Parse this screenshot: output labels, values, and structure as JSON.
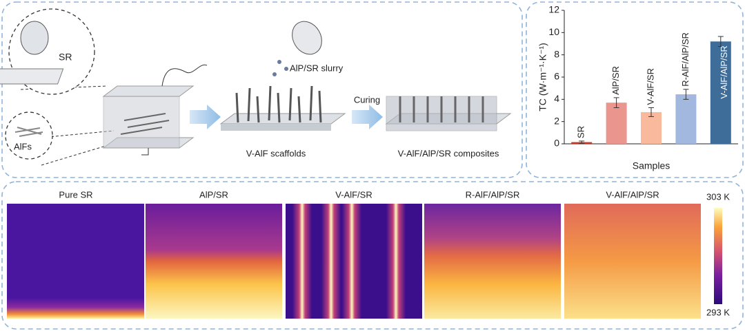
{
  "schematic": {
    "labels": [
      "SR",
      "AlFs",
      "AlP/SR slurry",
      "V-AlF scaffolds",
      "Curing",
      "V-AlF/AlP/SR composites"
    ]
  },
  "chart_data": {
    "type": "bar",
    "xlabel": "Samples",
    "ylabel": "TC (W·m⁻¹·K⁻¹)",
    "categories": [
      "SR",
      "AlP/SR",
      "V-AlF/SR",
      "R-AlF/AlP/SR",
      "V-AlF/AlP/SR"
    ],
    "values": [
      0.15,
      3.7,
      2.85,
      4.45,
      9.2
    ],
    "errors": [
      0.1,
      0.45,
      0.4,
      0.45,
      0.45
    ],
    "colors": [
      "#c0392b",
      "#ea958d",
      "#f8b99d",
      "#a2b8de",
      "#3d6d98"
    ],
    "ylim": [
      0,
      12
    ],
    "yticks": [
      0,
      2,
      4,
      6,
      8,
      10,
      12
    ]
  },
  "thermal_maps": {
    "panels": [
      {
        "title": "Pure SR"
      },
      {
        "title": "AlP/SR"
      },
      {
        "title": "V-AlF/SR"
      },
      {
        "title": "R-AlF/AlP/SR"
      },
      {
        "title": "V-AlF/AlP/SR"
      }
    ],
    "colorbar": {
      "max": "303 K",
      "min": "293 K"
    }
  }
}
